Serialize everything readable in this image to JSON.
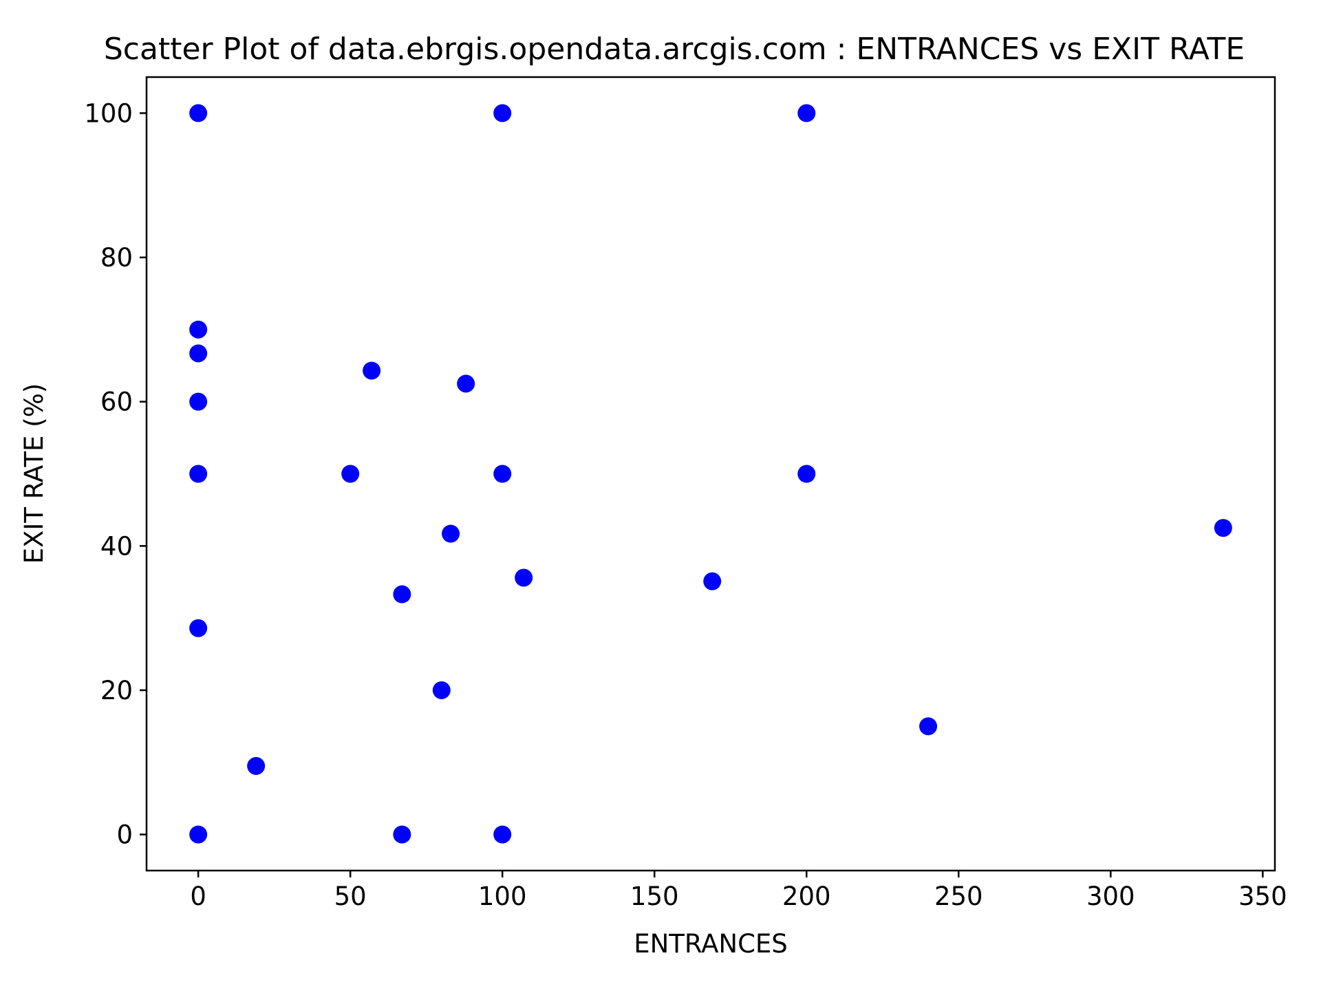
{
  "chart_data": {
    "type": "scatter",
    "title": "Scatter Plot of data.ebrgis.opendata.arcgis.com : ENTRANCES vs EXIT RATE",
    "xlabel": "ENTRANCES",
    "ylabel": "EXIT RATE (%)",
    "xlim": [
      -17,
      354
    ],
    "ylim": [
      -5,
      105
    ],
    "xticks": [
      0,
      50,
      100,
      150,
      200,
      250,
      300,
      350
    ],
    "yticks": [
      0,
      20,
      40,
      60,
      80,
      100
    ],
    "grid": false,
    "legend": "none",
    "marker_color": "#0000ff",
    "series": [
      {
        "points": [
          [
            0,
            100
          ],
          [
            100,
            100
          ],
          [
            200,
            100
          ],
          [
            0,
            70
          ],
          [
            0,
            66.7
          ],
          [
            57,
            64.3
          ],
          [
            88,
            62.5
          ],
          [
            0,
            60
          ],
          [
            0,
            50
          ],
          [
            50,
            50
          ],
          [
            100,
            50
          ],
          [
            200,
            50
          ],
          [
            337,
            42.5
          ],
          [
            83,
            41.7
          ],
          [
            107,
            35.6
          ],
          [
            169,
            35.1
          ],
          [
            67,
            33.3
          ],
          [
            0,
            28.6
          ],
          [
            80,
            20
          ],
          [
            240,
            15
          ],
          [
            19,
            9.5
          ],
          [
            0,
            0
          ],
          [
            67,
            0
          ],
          [
            100,
            0
          ]
        ]
      }
    ]
  }
}
